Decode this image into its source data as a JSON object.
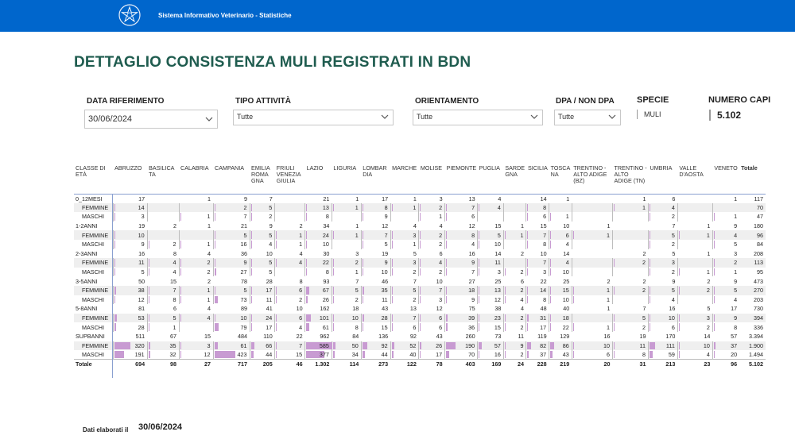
{
  "header": {
    "app_title": "Sistema Informativo Veterinario - Statistiche",
    "logo": "italian-republic-emblem-icon",
    "bar_color": "#0066cc"
  },
  "page_title": "DETTAGLIO CONSISTENZA MULI REGISTRATI IN BDN",
  "filters": {
    "data_riferimento": {
      "label": "DATA RIFERIMENTO",
      "value": "30/06/2024"
    },
    "tipo_attivita": {
      "label": "TIPO ATTIVITÀ",
      "value": "Tutte"
    },
    "orientamento": {
      "label": "ORIENTAMENTO",
      "value": "Tutte"
    },
    "dpa": {
      "label": "DPA / NON DPA",
      "value": "Tutte"
    },
    "specie": {
      "label": "SPECIE",
      "value": "MULI"
    },
    "numero_capi": {
      "label": "NUMERO CAPI",
      "value": "5.102"
    }
  },
  "table": {
    "row_header": "CLASSE DI ETÀ",
    "columns": [
      "ABRUZZO",
      "BASILICATA",
      "CALABRIA",
      "CAMPANIA",
      "EMILIA ROMAGNA",
      "FRIULI VENEZIA GIULIA",
      "LAZIO",
      "LIGURIA",
      "LOMBARDIA",
      "MARCHE",
      "MOLISE",
      "PIEMONTE",
      "PUGLIA",
      "SARDEGNA",
      "SICILIA",
      "TOSCANA",
      "TRENTINO - ALTO ADIGE (BZ)",
      "TRENTINO - ALTO ADIGE (TN)",
      "UMBRIA",
      "VALLE D'AOSTA",
      "VENETO",
      "Totale"
    ],
    "column_display": [
      "ABRUZZO",
      "BASILICA TA",
      "CALABRIA",
      "CAMPANIA",
      "EMILIA ROMA GNA",
      "FRIULI VENEZIA GIULIA",
      "LAZIO",
      "LIGURIA",
      "LOMBAR DIA",
      "MARCHE",
      "MOLISE",
      "PIEMONTE",
      "PUGLIA",
      "SARDE GNA",
      "SICILIA",
      "TOSCA NA",
      "TRENTINO - ALTO ADIGE (BZ)",
      "TRENTINO - ALTO ADIGE (TN)",
      "UMBRIA",
      "VALLE D'AOSTA",
      "VENETO",
      "Totale"
    ],
    "rows": [
      {
        "label": "0_12MESI",
        "type": "group",
        "values": [
          "17",
          "",
          "1",
          "9",
          "7",
          "",
          "21",
          "1",
          "17",
          "1",
          "3",
          "13",
          "4",
          "",
          "14",
          "1",
          "",
          "1",
          "6",
          "",
          "1",
          "117"
        ]
      },
      {
        "label": "FEMMINE",
        "type": "sub",
        "values": [
          "14",
          "",
          "",
          "2",
          "5",
          "",
          "13",
          "1",
          "8",
          "1",
          "2",
          "7",
          "4",
          "",
          "8",
          "",
          "",
          "1",
          "4",
          "",
          "",
          "70"
        ]
      },
      {
        "label": "MASCHI",
        "type": "sub",
        "values": [
          "3",
          "",
          "1",
          "7",
          "2",
          "",
          "8",
          "",
          "9",
          "",
          "1",
          "6",
          "",
          "",
          "6",
          "1",
          "",
          "",
          "2",
          "",
          "1",
          "47"
        ]
      },
      {
        "label": "1-2ANNI",
        "type": "group",
        "values": [
          "19",
          "2",
          "1",
          "21",
          "9",
          "2",
          "34",
          "1",
          "12",
          "4",
          "4",
          "12",
          "15",
          "1",
          "15",
          "10",
          "1",
          "",
          "7",
          "1",
          "9",
          "180"
        ]
      },
      {
        "label": "FEMMINE",
        "type": "sub",
        "values": [
          "10",
          "",
          "",
          "5",
          "5",
          "1",
          "24",
          "1",
          "7",
          "3",
          "2",
          "8",
          "5",
          "1",
          "7",
          "6",
          "1",
          "",
          "5",
          "1",
          "4",
          "96"
        ]
      },
      {
        "label": "MASCHI",
        "type": "sub",
        "values": [
          "9",
          "2",
          "1",
          "16",
          "4",
          "1",
          "10",
          "",
          "5",
          "1",
          "2",
          "4",
          "10",
          "",
          "8",
          "4",
          "",
          "",
          "2",
          "",
          "5",
          "84"
        ]
      },
      {
        "label": "2-3ANNI",
        "type": "group",
        "values": [
          "16",
          "8",
          "4",
          "36",
          "10",
          "4",
          "30",
          "3",
          "19",
          "5",
          "6",
          "16",
          "14",
          "2",
          "10",
          "14",
          "",
          "2",
          "5",
          "1",
          "3",
          "208"
        ]
      },
      {
        "label": "FEMMINE",
        "type": "sub",
        "values": [
          "11",
          "4",
          "2",
          "9",
          "5",
          "4",
          "22",
          "2",
          "9",
          "3",
          "4",
          "9",
          "11",
          "",
          "7",
          "4",
          "",
          "2",
          "3",
          "",
          "2",
          "113"
        ]
      },
      {
        "label": "MASCHI",
        "type": "sub",
        "values": [
          "5",
          "4",
          "2",
          "27",
          "5",
          "",
          "8",
          "1",
          "10",
          "2",
          "2",
          "7",
          "3",
          "2",
          "3",
          "10",
          "",
          "",
          "2",
          "1",
          "1",
          "95"
        ]
      },
      {
        "label": "3-5ANNI",
        "type": "group",
        "values": [
          "50",
          "15",
          "2",
          "78",
          "28",
          "8",
          "93",
          "7",
          "46",
          "7",
          "10",
          "27",
          "25",
          "6",
          "22",
          "25",
          "2",
          "2",
          "9",
          "2",
          "9",
          "473"
        ]
      },
      {
        "label": "FEMMINE",
        "type": "sub",
        "values": [
          "38",
          "7",
          "1",
          "5",
          "17",
          "6",
          "67",
          "5",
          "35",
          "5",
          "7",
          "18",
          "13",
          "2",
          "14",
          "15",
          "1",
          "2",
          "5",
          "2",
          "5",
          "270"
        ]
      },
      {
        "label": "MASCHI",
        "type": "sub",
        "values": [
          "12",
          "8",
          "1",
          "73",
          "11",
          "2",
          "26",
          "2",
          "11",
          "2",
          "3",
          "9",
          "12",
          "4",
          "8",
          "10",
          "1",
          "",
          "4",
          "",
          "4",
          "203"
        ]
      },
      {
        "label": "5-8ANNI",
        "type": "group",
        "values": [
          "81",
          "6",
          "4",
          "89",
          "41",
          "10",
          "162",
          "18",
          "43",
          "13",
          "12",
          "75",
          "38",
          "4",
          "48",
          "40",
          "1",
          "7",
          "16",
          "5",
          "17",
          "730"
        ]
      },
      {
        "label": "FEMMINE",
        "type": "sub",
        "values": [
          "53",
          "5",
          "4",
          "10",
          "24",
          "6",
          "101",
          "10",
          "28",
          "7",
          "6",
          "39",
          "23",
          "2",
          "31",
          "18",
          "",
          "5",
          "10",
          "3",
          "9",
          "394"
        ]
      },
      {
        "label": "MASCHI",
        "type": "sub",
        "values": [
          "28",
          "1",
          "",
          "79",
          "17",
          "4",
          "61",
          "8",
          "15",
          "6",
          "6",
          "36",
          "15",
          "2",
          "17",
          "22",
          "1",
          "2",
          "6",
          "2",
          "8",
          "336"
        ]
      },
      {
        "label": "SUPBANNI",
        "type": "group",
        "values": [
          "511",
          "67",
          "15",
          "484",
          "110",
          "22",
          "962",
          "84",
          "136",
          "92",
          "43",
          "260",
          "73",
          "11",
          "119",
          "129",
          "16",
          "19",
          "170",
          "14",
          "57",
          "3.394"
        ]
      },
      {
        "label": "FEMMINE",
        "type": "sub",
        "values": [
          "320",
          "35",
          "3",
          "61",
          "66",
          "7",
          "585",
          "50",
          "92",
          "52",
          "26",
          "190",
          "57",
          "9",
          "82",
          "86",
          "10",
          "11",
          "111",
          "10",
          "37",
          "1.900"
        ]
      },
      {
        "label": "MASCHI",
        "type": "sub",
        "values": [
          "191",
          "32",
          "12",
          "423",
          "44",
          "15",
          "377",
          "34",
          "44",
          "40",
          "17",
          "70",
          "16",
          "2",
          "37",
          "43",
          "6",
          "8",
          "59",
          "4",
          "20",
          "1.494"
        ]
      },
      {
        "label": "Totale",
        "type": "total",
        "values": [
          "694",
          "98",
          "27",
          "717",
          "205",
          "46",
          "1.302",
          "114",
          "273",
          "122",
          "78",
          "403",
          "169",
          "24",
          "228",
          "219",
          "20",
          "31",
          "213",
          "23",
          "96",
          "5.102"
        ]
      }
    ],
    "bar_color": "#c89bd2"
  },
  "footer": {
    "label": "Dati elaborati il",
    "date": "30/06/2024"
  }
}
